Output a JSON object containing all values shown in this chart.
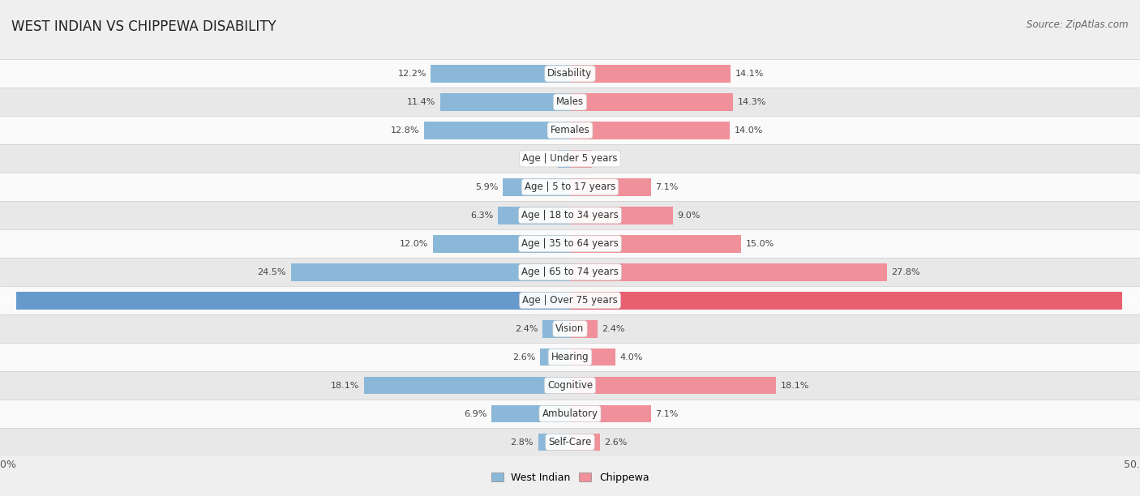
{
  "title": "WEST INDIAN VS CHIPPEWA DISABILITY",
  "source": "Source: ZipAtlas.com",
  "categories": [
    "Disability",
    "Males",
    "Females",
    "Age | Under 5 years",
    "Age | 5 to 17 years",
    "Age | 18 to 34 years",
    "Age | 35 to 64 years",
    "Age | 65 to 74 years",
    "Age | Over 75 years",
    "Vision",
    "Hearing",
    "Cognitive",
    "Ambulatory",
    "Self-Care"
  ],
  "west_indian": [
    12.2,
    11.4,
    12.8,
    1.1,
    5.9,
    6.3,
    12.0,
    24.5,
    48.6,
    2.4,
    2.6,
    18.1,
    6.9,
    2.8
  ],
  "chippewa": [
    14.1,
    14.3,
    14.0,
    1.9,
    7.1,
    9.0,
    15.0,
    27.8,
    48.4,
    2.4,
    4.0,
    18.1,
    7.1,
    2.6
  ],
  "max_val": 50.0,
  "blue_color": "#8BB8D8",
  "pink_color": "#F0909A",
  "blue_dark": "#6699CC",
  "pink_dark": "#E86070",
  "bg_color": "#EFEFEF",
  "row_bg_light": "#FAFAFA",
  "row_bg_alt": "#E8E8E8",
  "label_fontsize": 8.5,
  "title_fontsize": 12,
  "source_fontsize": 8.5,
  "value_fontsize": 8.0
}
